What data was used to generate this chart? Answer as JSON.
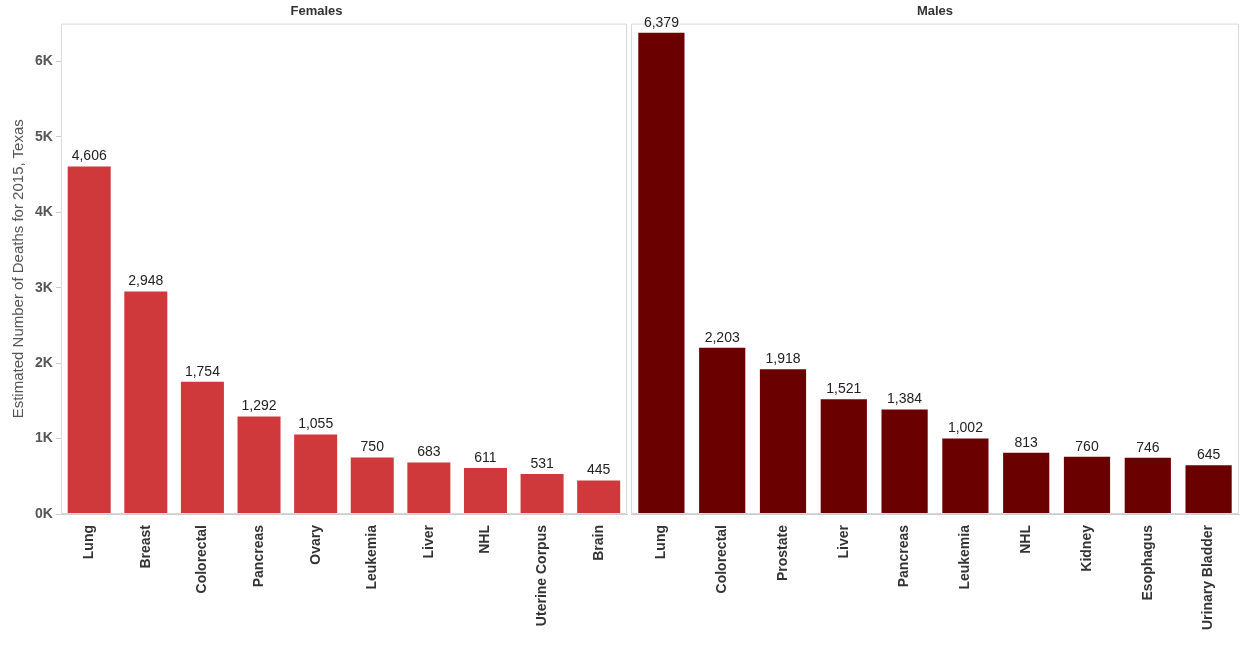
{
  "chart_data": [
    {
      "type": "bar",
      "title": "Females",
      "ylabel": "Estimated Number of Deaths for 2015, Texas",
      "categories": [
        "Lung",
        "Breast",
        "Colorectal",
        "Pancreas",
        "Ovary",
        "Leukemia",
        "Liver",
        "NHL",
        "Uterine Corpus",
        "Brain"
      ],
      "values": [
        4606,
        2948,
        1754,
        1292,
        1055,
        750,
        683,
        611,
        531,
        445
      ],
      "value_labels": [
        "4,606",
        "2,948",
        "1,754",
        "1,292",
        "1,055",
        "750",
        "683",
        "611",
        "531",
        "445"
      ],
      "color": "#d0393c",
      "ylim": [
        0,
        6500
      ],
      "yticks": [
        {
          "value": 0,
          "label": "0K"
        },
        {
          "value": 1000,
          "label": "1K"
        },
        {
          "value": 2000,
          "label": "2K"
        },
        {
          "value": 3000,
          "label": "3K"
        },
        {
          "value": 4000,
          "label": "4K"
        },
        {
          "value": 5000,
          "label": "5K"
        },
        {
          "value": 6000,
          "label": "6K"
        }
      ],
      "grid": false,
      "legend": false
    },
    {
      "type": "bar",
      "title": "Males",
      "categories": [
        "Lung",
        "Colorectal",
        "Prostate",
        "Liver",
        "Pancreas",
        "Leukemia",
        "NHL",
        "Kidney",
        "Esophagus",
        "Urinary Bladder"
      ],
      "values": [
        6379,
        2203,
        1918,
        1521,
        1384,
        1002,
        813,
        760,
        746,
        645
      ],
      "value_labels": [
        "6,379",
        "2,203",
        "1,918",
        "1,521",
        "1,384",
        "1,002",
        "813",
        "760",
        "746",
        "645"
      ],
      "color": "#6b0000",
      "ylim": [
        0,
        6500
      ],
      "grid": false,
      "legend": false,
      "tick_labels": "x"
    }
  ]
}
